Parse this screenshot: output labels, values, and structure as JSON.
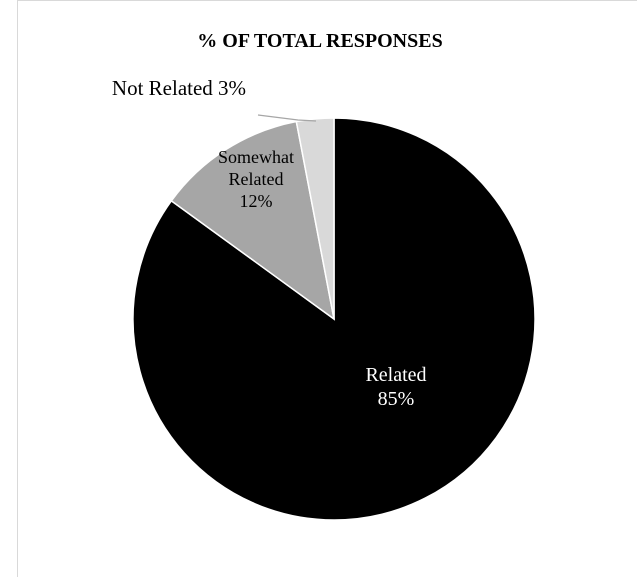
{
  "chart_data": {
    "type": "pie",
    "title": "% OF TOTAL RESPONSES",
    "slices": [
      {
        "label": "Related",
        "value": 85,
        "label_text": [
          "Related",
          "85%"
        ],
        "color": "#000000",
        "text_color": "#ffffff"
      },
      {
        "label": "Somewhat Related",
        "value": 12,
        "label_text": [
          "Somewhat",
          "Related",
          "12%"
        ],
        "color": "#a6a6a6",
        "text_color": "#000000"
      },
      {
        "label": "Not Related",
        "value": 3,
        "label_text": [
          "Not Related 3%"
        ],
        "color": "#d9d9d9",
        "text_color": "#000000"
      }
    ],
    "legend": "none"
  }
}
